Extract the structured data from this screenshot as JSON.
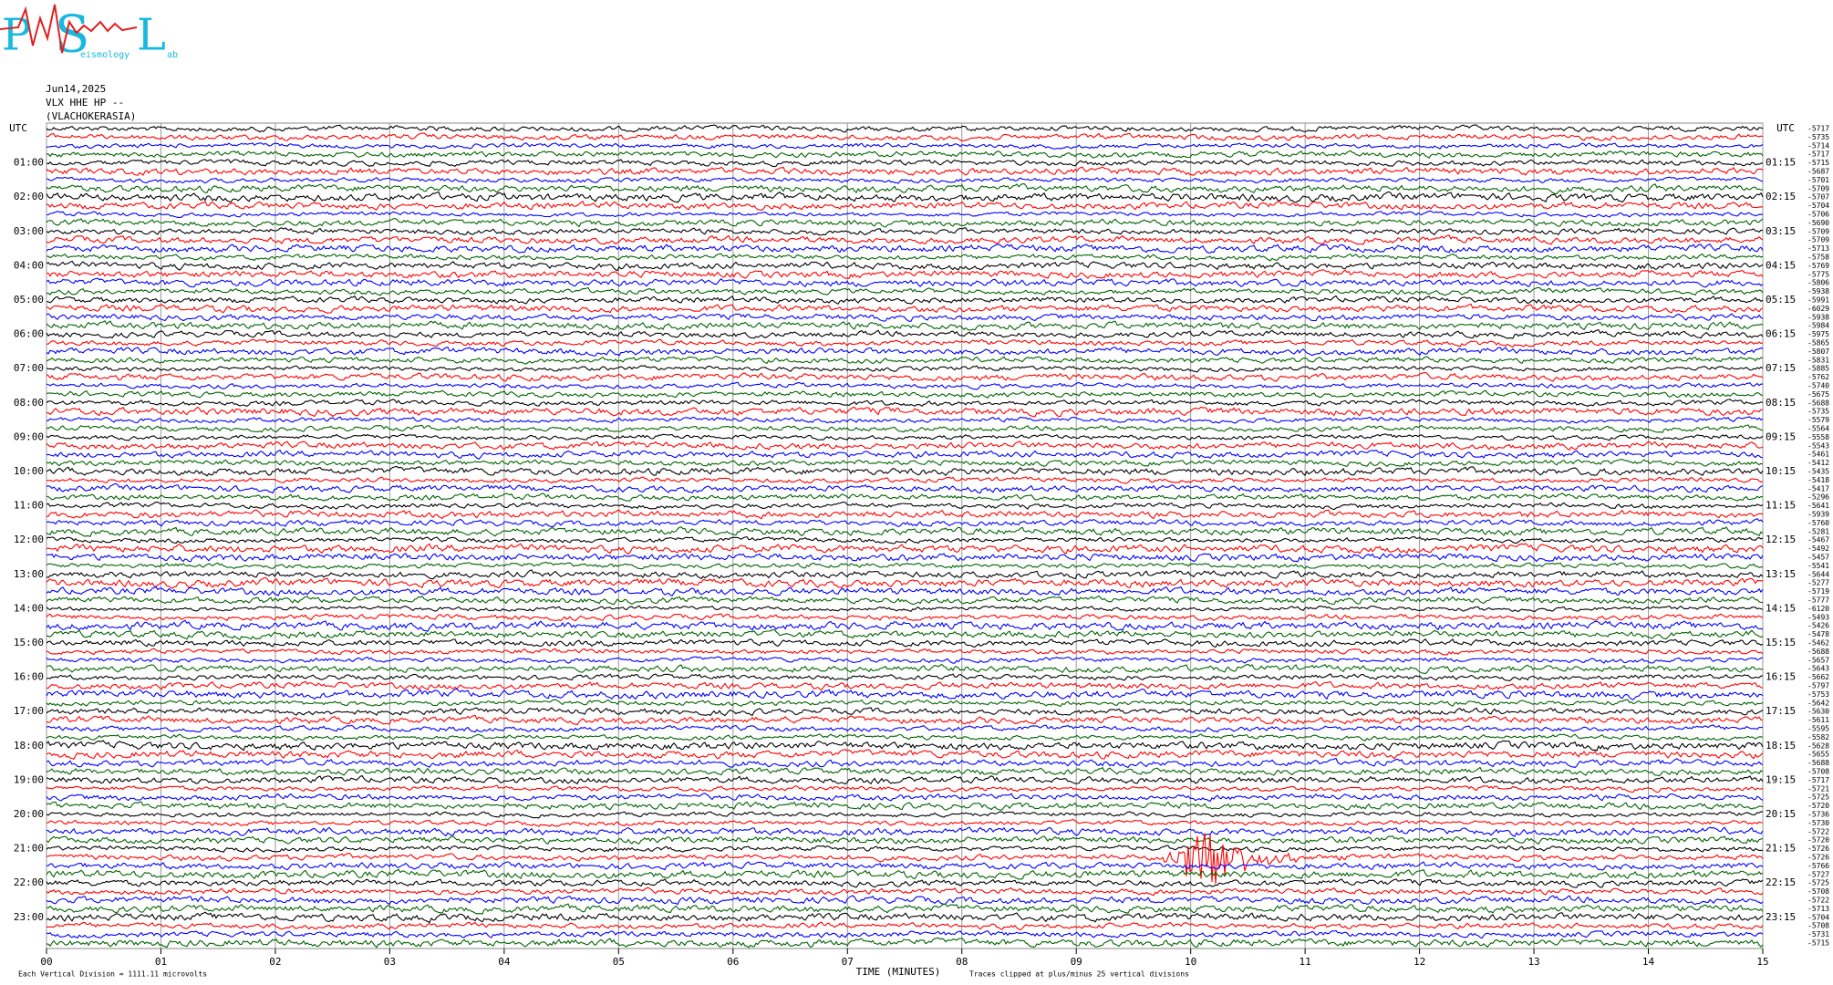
{
  "logo": {
    "letters": [
      "P",
      "S",
      "L"
    ],
    "subtexts": [
      "eismology",
      "ab"
    ]
  },
  "chart_data": {
    "type": "seismogram",
    "header": [
      "Jun14,2025",
      "VLX HHE HP --",
      "(VLACHOKERASIA)"
    ],
    "left_labels": [
      "UTC",
      "01:00",
      "02:00",
      "03:00",
      "04:00",
      "05:00",
      "06:00",
      "07:00",
      "08:00",
      "09:00",
      "10:00",
      "11:00",
      "12:00",
      "13:00",
      "14:00",
      "15:00",
      "16:00",
      "17:00",
      "18:00",
      "19:00",
      "20:00",
      "21:00",
      "22:00",
      "23:00"
    ],
    "right_labels": [
      "UTC",
      "01:15",
      "02:15",
      "03:15",
      "04:15",
      "05:15",
      "06:15",
      "07:15",
      "08:15",
      "09:15",
      "10:15",
      "11:15",
      "12:15",
      "13:15",
      "14:15",
      "15:15",
      "16:15",
      "17:15",
      "18:15",
      "19:15",
      "20:15",
      "21:15",
      "22:15",
      "23:15"
    ],
    "trace_colors": [
      "#000000",
      "#ff0000",
      "#0000ff",
      "#006400"
    ],
    "offsets": [
      -5717,
      -5735,
      -5714,
      -5717,
      -5715,
      -5687,
      -5701,
      -5709,
      -5707,
      -5704,
      -5706,
      -5690,
      -5709,
      -5709,
      -5713,
      -5758,
      -5769,
      -5775,
      -5806,
      -5938,
      -5991,
      -6029,
      -5938,
      -5984,
      -5975,
      -5865,
      -5807,
      -5831,
      -5885,
      -5762,
      -5740,
      -5675,
      -5688,
      -5735,
      -5579,
      -5564,
      -5558,
      -5543,
      -5461,
      -5412,
      -5435,
      -5418,
      -5417,
      -5296,
      -5641,
      -5939,
      -5760,
      -5281,
      -5467,
      -5492,
      -5457,
      -5541,
      -5644,
      -5277,
      -5719,
      -5777,
      -6120,
      -5493,
      -5426,
      -5478,
      -5462,
      -5688,
      -5657,
      -5643,
      -5662,
      -5797,
      -5753,
      -5642,
      -5630,
      -5611,
      -5595,
      -5582,
      -5628,
      -5655,
      -5688,
      -5708,
      -5717,
      -5721,
      -5725,
      -5720,
      -5736,
      -5730,
      -5722,
      -5720,
      -5726,
      -5726,
      -5766,
      -5727,
      -5725,
      -5708,
      -5722,
      -5713,
      -5704,
      -5708,
      -5731,
      -5715
    ],
    "events": [
      {
        "trace": 85,
        "start": 9.7,
        "peak": 10.2,
        "end": 11.5
      }
    ],
    "xlim": [
      0,
      15
    ],
    "xticks": [
      {
        "value": 0,
        "label": "00"
      },
      {
        "value": 1,
        "label": "01"
      },
      {
        "value": 2,
        "label": "02"
      },
      {
        "value": 3,
        "label": "03"
      },
      {
        "value": 4,
        "label": "04"
      },
      {
        "value": 5,
        "label": "05"
      },
      {
        "value": 6,
        "label": "06"
      },
      {
        "value": 7,
        "label": "07"
      },
      {
        "value": 8,
        "label": "08"
      },
      {
        "value": 9,
        "label": "09"
      },
      10,
      11,
      12,
      13,
      14,
      15
    ],
    "grid": true,
    "xlabel": "TIME (MINUTES)",
    "footer_left": "Each Vertical Division = 1111.11 microvolts",
    "footer_right": "Traces clipped at plus/minus 25 vertical divisions"
  }
}
